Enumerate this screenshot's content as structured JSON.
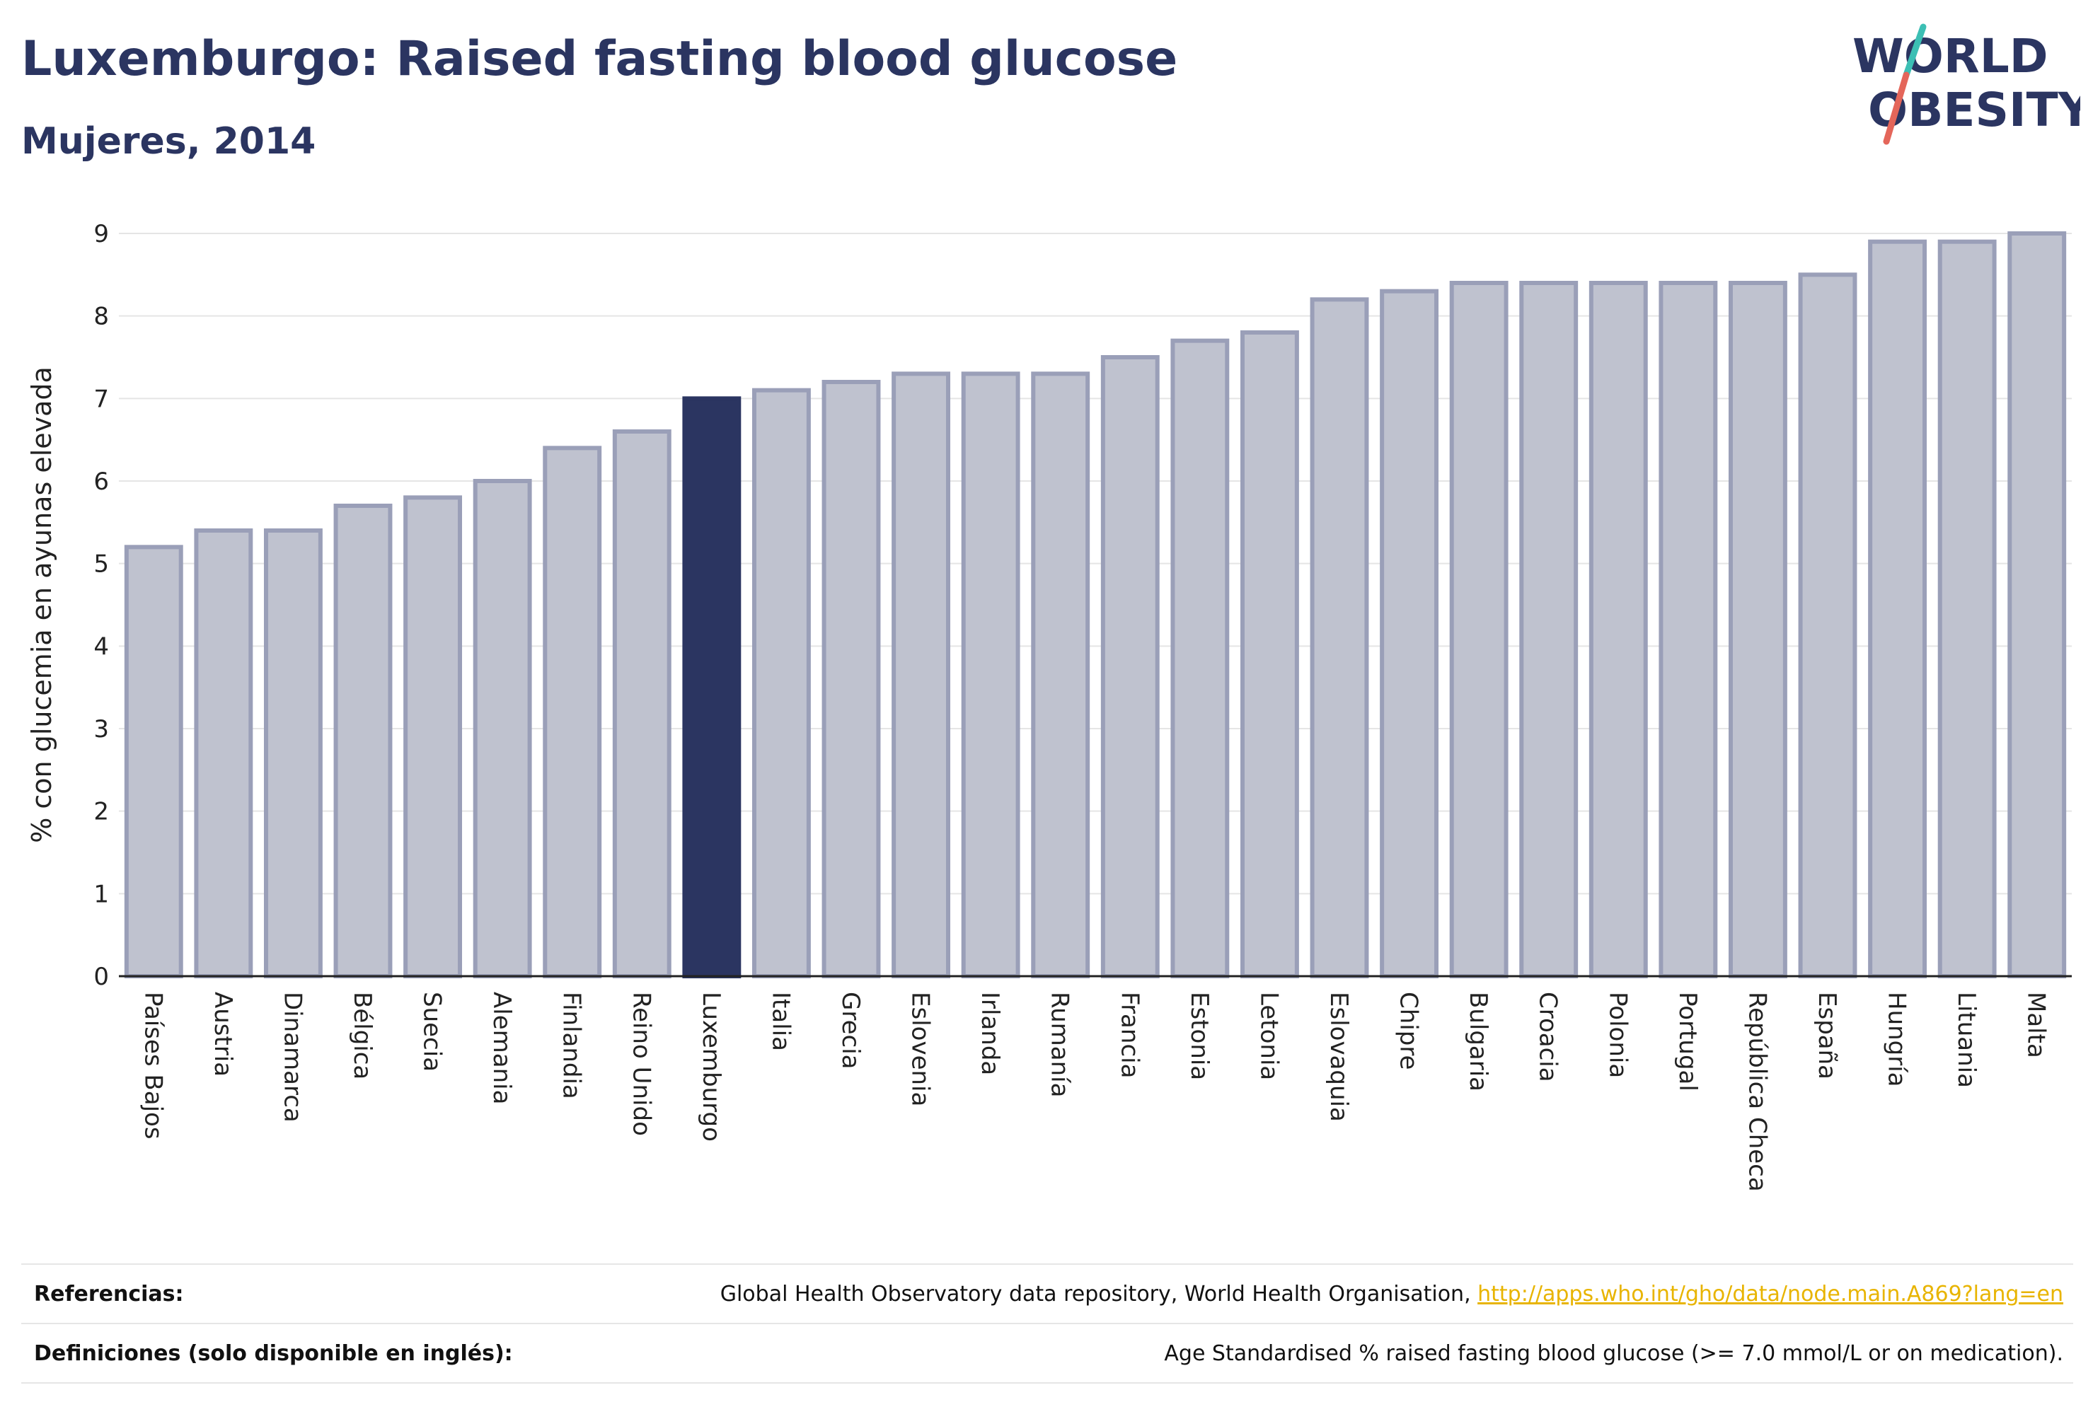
{
  "header": {
    "title": "Luxemburgo: Raised fasting blood glucose",
    "subtitle": "Mujeres, 2014"
  },
  "logo": {
    "line1": "WORLD",
    "line2": "OBESITY",
    "colors": {
      "text": "#2b3561",
      "slash_teal": "#3cbfb4",
      "slash_red": "#e4665a"
    }
  },
  "chart_data": {
    "type": "bar",
    "ylabel": "% con glucemia en ayunas elevada",
    "ylim": [
      0,
      9
    ],
    "yticks": [
      0,
      1,
      2,
      3,
      4,
      5,
      6,
      7,
      8,
      9
    ],
    "grid": true,
    "highlight": "Luxemburgo",
    "colors": {
      "bar": "#bfc2cf",
      "bar_edge": "#9a9fb8",
      "highlight": "#2b3561"
    },
    "categories": [
      "Países Bajos",
      "Austria",
      "Dinamarca",
      "Bélgica",
      "Suecia",
      "Alemania",
      "Finlandia",
      "Reino Unido",
      "Luxemburgo",
      "Italia",
      "Grecia",
      "Eslovenia",
      "Irlanda",
      "Rumanía",
      "Francia",
      "Estonia",
      "Letonia",
      "Eslovaquia",
      "Chipre",
      "Bulgaria",
      "Croacia",
      "Polonia",
      "Portugal",
      "República Checa",
      "España",
      "Hungría",
      "Lituania",
      "Malta"
    ],
    "values": [
      5.2,
      5.4,
      5.4,
      5.7,
      5.8,
      6.0,
      6.4,
      6.6,
      7.0,
      7.1,
      7.2,
      7.3,
      7.3,
      7.3,
      7.5,
      7.7,
      7.8,
      8.2,
      8.3,
      8.4,
      8.4,
      8.4,
      8.4,
      8.4,
      8.5,
      8.9,
      8.9,
      9.0
    ]
  },
  "footer": {
    "references_label": "Referencias:",
    "references_text": "Global Health Observatory data repository, World Health Organisation, ",
    "references_link": "http://apps.who.int/gho/data/node.main.A869?lang=en",
    "definitions_label": "Definiciones (solo disponible en inglés):",
    "definitions_text": "Age Standardised % raised fasting blood glucose (>= 7.0 mmol/L or on medication)."
  }
}
